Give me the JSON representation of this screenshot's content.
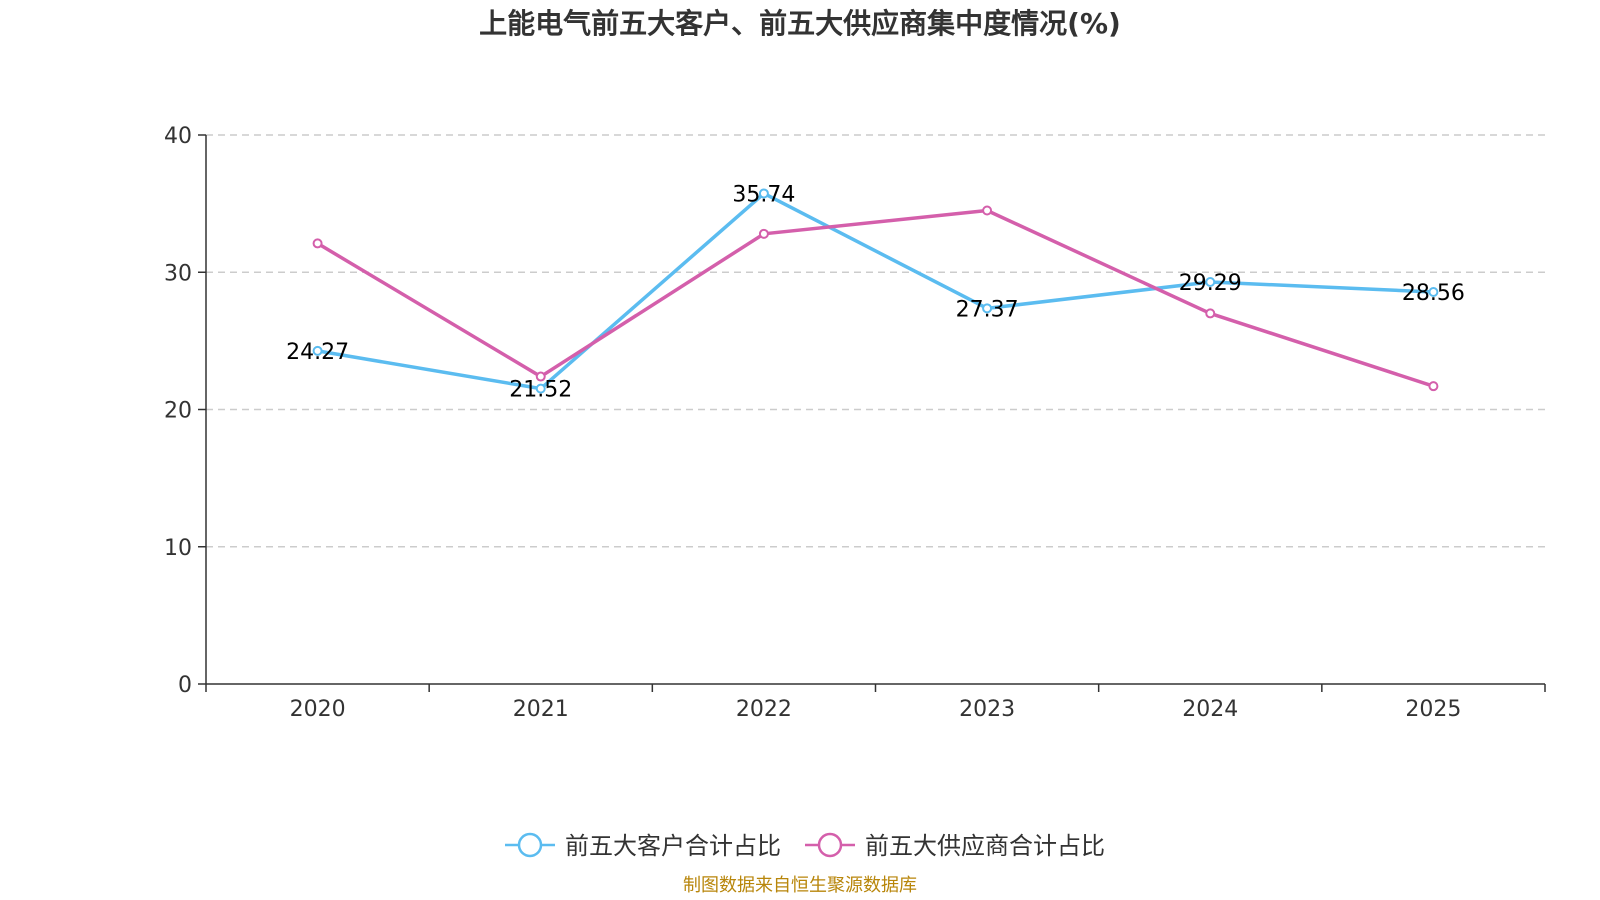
{
  "chart_data": {
    "type": "line",
    "title": "上能电气前五大客户、前五大供应商集中度情况(%)",
    "categories": [
      "2020",
      "2021",
      "2022",
      "2023",
      "2024",
      "2025"
    ],
    "ylim": [
      0,
      40
    ],
    "yticks": [
      0,
      10,
      20,
      30,
      40
    ],
    "grid": true,
    "legend_position": "bottom",
    "series": [
      {
        "name": "前五大客户合计占比",
        "color": "#5bbcf0",
        "values": [
          24.27,
          21.52,
          35.74,
          27.37,
          29.29,
          28.56
        ],
        "labels": [
          "24.27",
          "21.52",
          "35.74",
          "27.37",
          "29.29",
          "28.56"
        ],
        "show_labels": true
      },
      {
        "name": "前五大供应商合计占比",
        "color": "#d45fab",
        "values": [
          32.1,
          22.4,
          32.8,
          34.5,
          27.0,
          21.7
        ],
        "show_labels": false
      }
    ],
    "source": "制图数据来自恒生聚源数据库"
  }
}
